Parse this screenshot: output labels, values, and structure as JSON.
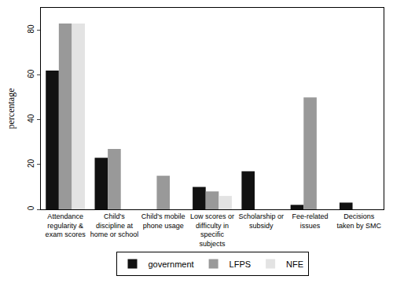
{
  "chart_data": {
    "type": "bar",
    "y_label": "percentage",
    "categories": [
      "Attendance regularity & exam scores",
      "Child's discipline at home or school",
      "Child's mobile phone usage",
      "Low scores or difficulty in specific subjects",
      "Scholarship or subsidy",
      "Fee-related issues",
      "Decisions taken by SMC"
    ],
    "series": [
      {
        "name": "government",
        "color": "#111111",
        "values": [
          62,
          23,
          0,
          10,
          17,
          2,
          3
        ]
      },
      {
        "name": "LFPS",
        "color": "#999999",
        "values": [
          83,
          27,
          15,
          8,
          0,
          50,
          0
        ]
      },
      {
        "name": "NFE",
        "color": "#e3e3e3",
        "values": [
          83,
          0,
          0,
          6,
          0,
          0,
          0
        ]
      }
    ],
    "ylim": [
      0,
      90
    ],
    "yticks": [
      0,
      20,
      40,
      60,
      80
    ],
    "grid": false,
    "legend": "bottom"
  }
}
